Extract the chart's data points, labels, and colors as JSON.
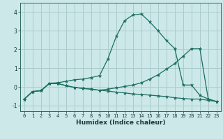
{
  "xlabel": "Humidex (Indice chaleur)",
  "background_color": "#cce8e8",
  "line_color": "#1a6e60",
  "grid_color": "#aacccc",
  "xlim": [
    -0.5,
    23.5
  ],
  "ylim": [
    -1.3,
    4.5
  ],
  "yticks": [
    -1,
    0,
    1,
    2,
    3,
    4
  ],
  "xticks": [
    0,
    1,
    2,
    3,
    4,
    5,
    6,
    7,
    8,
    9,
    10,
    11,
    12,
    13,
    14,
    15,
    16,
    17,
    18,
    19,
    20,
    21,
    22,
    23
  ],
  "curve1_x": [
    0,
    1,
    2,
    3,
    4,
    5,
    6,
    7,
    8,
    9,
    10,
    11,
    12,
    13,
    14,
    15,
    16,
    17,
    18,
    19,
    20,
    21,
    22,
    23
  ],
  "curve1_y": [
    -0.65,
    -0.25,
    -0.2,
    0.2,
    0.22,
    0.3,
    0.38,
    0.42,
    0.5,
    0.6,
    1.5,
    2.7,
    3.55,
    3.85,
    3.9,
    3.48,
    3.0,
    2.48,
    2.05,
    0.1,
    0.1,
    -0.45,
    -0.65,
    -0.78
  ],
  "curve2_x": [
    0,
    1,
    2,
    3,
    4,
    5,
    6,
    7,
    8,
    9,
    10,
    11,
    12,
    13,
    14,
    15,
    16,
    17,
    18,
    19,
    20,
    21,
    22,
    23
  ],
  "curve2_y": [
    -0.65,
    -0.25,
    -0.2,
    0.18,
    0.18,
    0.07,
    -0.03,
    -0.08,
    -0.12,
    -0.18,
    -0.12,
    -0.05,
    0.02,
    0.1,
    0.22,
    0.42,
    0.65,
    0.95,
    1.25,
    1.65,
    2.05,
    2.05,
    -0.65,
    -0.78
  ],
  "curve3_x": [
    0,
    1,
    2,
    3,
    4,
    5,
    6,
    7,
    8,
    9,
    10,
    11,
    12,
    13,
    14,
    15,
    16,
    17,
    18,
    19,
    20,
    21,
    22,
    23
  ],
  "curve3_y": [
    -0.65,
    -0.25,
    -0.2,
    0.18,
    0.18,
    0.07,
    -0.03,
    -0.08,
    -0.12,
    -0.18,
    -0.22,
    -0.28,
    -0.32,
    -0.38,
    -0.4,
    -0.44,
    -0.48,
    -0.52,
    -0.58,
    -0.62,
    -0.65,
    -0.65,
    -0.72,
    -0.78
  ]
}
